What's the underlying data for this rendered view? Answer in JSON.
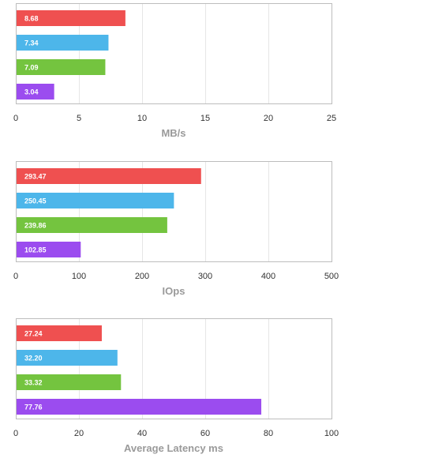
{
  "chart_data": [
    {
      "type": "bar",
      "orientation": "horizontal",
      "xlabel": "MB/s",
      "xlim": [
        0,
        25
      ],
      "xticks": [
        0,
        5,
        10,
        15,
        20,
        25
      ],
      "grid": true,
      "values": [
        8.68,
        7.34,
        7.09,
        3.04
      ],
      "labels": [
        "8.68",
        "7.34",
        "7.09",
        "3.04"
      ],
      "colors": [
        "#ef5050",
        "#4db6ea",
        "#74c43f",
        "#9b4cef"
      ]
    },
    {
      "type": "bar",
      "orientation": "horizontal",
      "xlabel": "IOps",
      "xlim": [
        0,
        500
      ],
      "xticks": [
        0,
        100,
        200,
        300,
        400,
        500
      ],
      "grid": true,
      "values": [
        293.47,
        250.45,
        239.86,
        102.85
      ],
      "labels": [
        "293.47",
        "250.45",
        "239.86",
        "102.85"
      ],
      "colors": [
        "#ef5050",
        "#4db6ea",
        "#74c43f",
        "#9b4cef"
      ]
    },
    {
      "type": "bar",
      "orientation": "horizontal",
      "xlabel": "Average Latency ms",
      "xlim": [
        0,
        100
      ],
      "xticks": [
        0,
        20,
        40,
        60,
        80,
        100
      ],
      "grid": true,
      "values": [
        27.24,
        32.2,
        33.32,
        77.76
      ],
      "labels": [
        "27.24",
        "32.20",
        "33.32",
        "77.76"
      ],
      "colors": [
        "#ef5050",
        "#4db6ea",
        "#74c43f",
        "#9b4cef"
      ]
    }
  ]
}
